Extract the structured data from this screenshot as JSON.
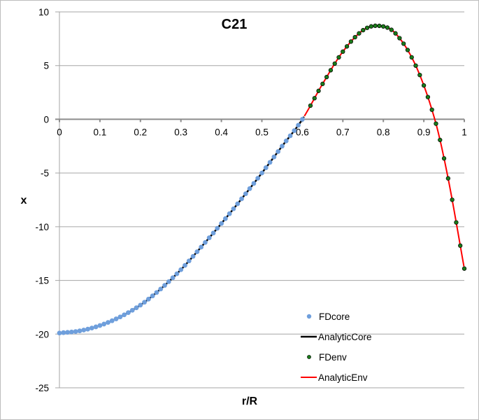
{
  "chart_data": {
    "type": "line",
    "title": "C21",
    "xlabel": "r/R",
    "ylabel": "x",
    "xlim": [
      0,
      1
    ],
    "ylim": [
      -25,
      10
    ],
    "x_ticks": [
      "0",
      "0.1",
      "0.2",
      "0.3",
      "0.4",
      "0.5",
      "0.6",
      "0.7",
      "0.8",
      "0.9",
      "1"
    ],
    "y_ticks": [
      "10",
      "5",
      "0",
      "-5",
      "-10",
      "-15",
      "-20",
      "-25"
    ],
    "grid": "horizontal",
    "legend_position": "lower right inside plot",
    "series": [
      {
        "name": "FDcore",
        "kind": "markers",
        "color": "#6f9fdc",
        "x_range": [
          0,
          0.605
        ],
        "step": 0.01
      },
      {
        "name": "AnalyticCore",
        "kind": "line",
        "color": "#000000",
        "x_range": [
          0,
          0.605
        ]
      },
      {
        "name": "FDenv",
        "kind": "markers",
        "color": "#1a7a1a",
        "x_range": [
          0.62,
          1.0
        ],
        "step": 0.01
      },
      {
        "name": "AnalyticEnv",
        "kind": "line",
        "color": "#ff0000",
        "x_range": [
          0.605,
          1.0
        ]
      }
    ],
    "knots": {
      "x": [
        0,
        0.05,
        0.1,
        0.15,
        0.2,
        0.25,
        0.3,
        0.35,
        0.4,
        0.45,
        0.5,
        0.55,
        0.6,
        0.65,
        0.7,
        0.75,
        0.79,
        0.83,
        0.88,
        0.927,
        0.96,
        1.0
      ],
      "y": [
        -19.9,
        -19.7,
        -19.2,
        -18.4,
        -17.3,
        -15.8,
        -14.0,
        -11.9,
        -9.7,
        -7.4,
        -5.0,
        -2.5,
        0.0,
        3.3,
        6.3,
        8.3,
        8.7,
        8.0,
        5.0,
        0.0,
        -5.5,
        -13.9
      ]
    },
    "sample_points": [
      {
        "x": 0.0,
        "y": -19.9
      },
      {
        "x": 0.1,
        "y": -19.2
      },
      {
        "x": 0.2,
        "y": -17.3
      },
      {
        "x": 0.3,
        "y": -14.0
      },
      {
        "x": 0.4,
        "y": -9.7
      },
      {
        "x": 0.5,
        "y": -5.0
      },
      {
        "x": 0.6,
        "y": 0.0
      },
      {
        "x": 0.7,
        "y": 6.3
      },
      {
        "x": 0.79,
        "y": 8.7
      },
      {
        "x": 0.9,
        "y": 3.5
      },
      {
        "x": 1.0,
        "y": -13.9
      }
    ]
  },
  "legend": {
    "items": [
      {
        "label": "FDcore"
      },
      {
        "label": "AnalyticCore"
      },
      {
        "label": "FDenv"
      },
      {
        "label": "AnalyticEnv"
      }
    ]
  }
}
